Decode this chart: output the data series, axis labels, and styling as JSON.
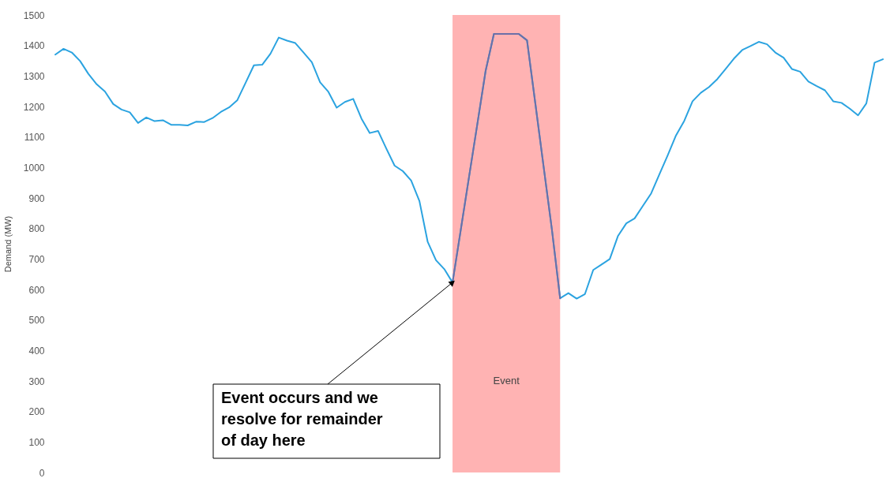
{
  "chart_data": {
    "type": "line",
    "ylabel": "Demand (MW)",
    "ylim": [
      0,
      1500
    ],
    "yticks": [
      0,
      100,
      200,
      300,
      400,
      500,
      600,
      700,
      800,
      900,
      1000,
      1100,
      1200,
      1300,
      1400,
      1500
    ],
    "tick_labels": "y",
    "grid": false,
    "line_style": "solid",
    "marker": "none",
    "categories": [
      null,
      null,
      null,
      null,
      null,
      null,
      null,
      null,
      null,
      null,
      null,
      null,
      null,
      null,
      null,
      null,
      null,
      null,
      null,
      null,
      null,
      null,
      null,
      null,
      null,
      null,
      null,
      null,
      null,
      null,
      null,
      null,
      null,
      null,
      null,
      null,
      null,
      null,
      null,
      null,
      null,
      null,
      null,
      null,
      null,
      null,
      null,
      null,
      null,
      null,
      null,
      null,
      null,
      null,
      null,
      null,
      null,
      null,
      null,
      null,
      null,
      null,
      null,
      null,
      null,
      null,
      null,
      null,
      null,
      null,
      null,
      null,
      null,
      null,
      null,
      null,
      null,
      null,
      null,
      null,
      null,
      null,
      null,
      null,
      null,
      null,
      null,
      null,
      null,
      null,
      null,
      null,
      null,
      null,
      null,
      null,
      null,
      null,
      null,
      null,
      null
    ],
    "series": [
      {
        "color": "#2ba3e0",
        "values": [
          1370,
          1389,
          1377,
          1349,
          1307,
          1273,
          1249,
          1208,
          1190,
          1181,
          1146,
          1164,
          1152,
          1155,
          1140,
          1140,
          1138,
          1150,
          1149,
          1162,
          1182,
          1197,
          1221,
          1278,
          1335,
          1337,
          1373,
          1426,
          1416,
          1408,
          1377,
          1345,
          1279,
          1248,
          1196,
          1215,
          1225,
          1160,
          1113,
          1120,
          1062,
          1006,
          988,
          957,
          890,
          756,
          696,
          667,
          623,
          796,
          970,
          1143,
          1317,
          1438,
          1438,
          1438,
          1438,
          1417,
          1211,
          1004,
          798,
          571,
          588,
          570,
          585,
          664,
          682,
          700,
          776,
          817,
          833,
          874,
          915,
          978,
          1040,
          1105,
          1153,
          1217,
          1245,
          1264,
          1290,
          1323,
          1357,
          1385,
          1398,
          1412,
          1404,
          1377,
          1360,
          1323,
          1314,
          1282,
          1267,
          1253,
          1217,
          1212,
          1193,
          1171,
          1210,
          1344,
          1355
        ]
      },
      {
        "color": "#6b6fa8",
        "values": [
          null,
          null,
          null,
          null,
          null,
          null,
          null,
          null,
          null,
          null,
          null,
          null,
          null,
          null,
          null,
          null,
          null,
          null,
          null,
          null,
          null,
          null,
          null,
          null,
          null,
          null,
          null,
          null,
          null,
          null,
          null,
          null,
          null,
          null,
          null,
          null,
          null,
          null,
          null,
          null,
          null,
          null,
          null,
          null,
          null,
          null,
          null,
          null,
          623,
          796,
          970,
          1143,
          1317,
          1438,
          1438,
          1438,
          1438,
          1417,
          1211,
          1004,
          798,
          571,
          null,
          null,
          null,
          null,
          null,
          null,
          null,
          null,
          null,
          null,
          null,
          null,
          null,
          null,
          null,
          null,
          null,
          null,
          null,
          null,
          null,
          null,
          null,
          null,
          null,
          null,
          null,
          null,
          null,
          null,
          null,
          null,
          null,
          null,
          null,
          null,
          null,
          null,
          null
        ]
      }
    ],
    "annotations": [
      "Event",
      "Event occurs and we resolve for remainder of day here"
    ]
  }
}
